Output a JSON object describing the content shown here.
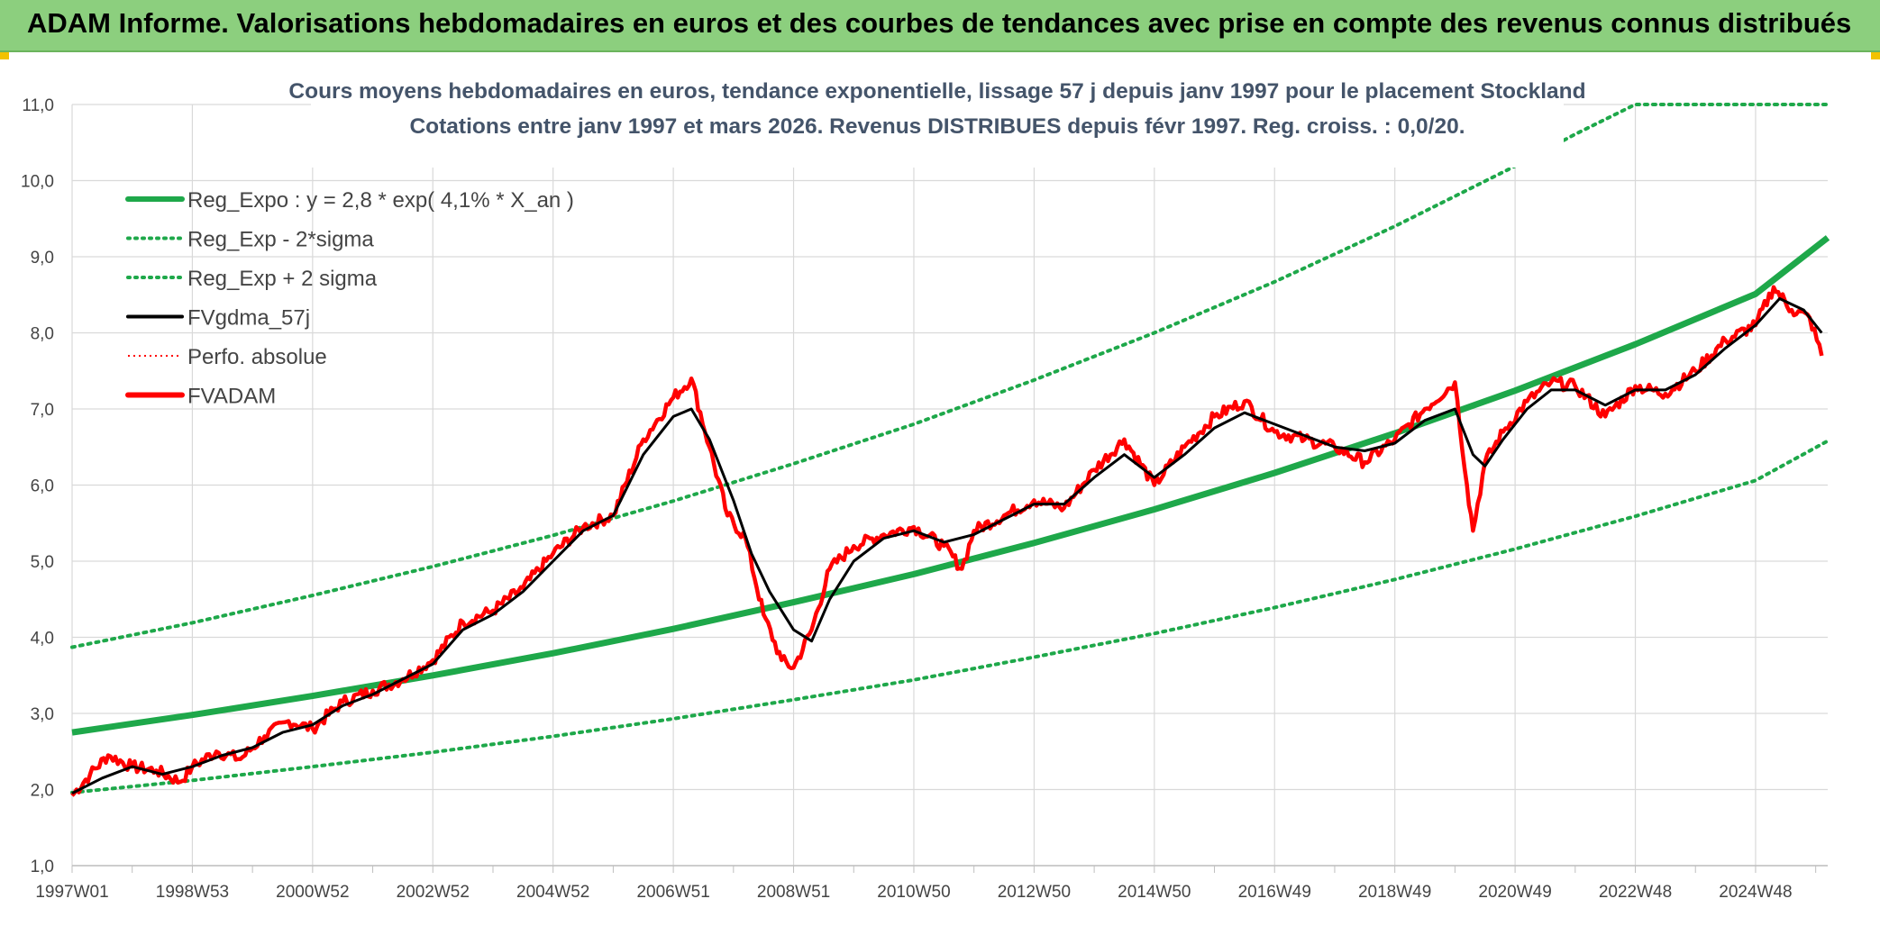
{
  "header": {
    "title": "ADAM Informe. Valorisations hebdomadaires en euros et des courbes de tendances avec prise en compte des revenus connus distribués"
  },
  "colors": {
    "banner": "#8ccf7e",
    "trend": "#1ea84a",
    "band": "#1ea84a",
    "smooth": "#000000",
    "price": "#ff0000",
    "perf": "#ff0000",
    "grid": "#d9d9d9"
  },
  "chart_data": {
    "type": "line",
    "title_lines": [
      "Cours moyens hebdomadaires en euros, tendance exponentielle, lissage 57 j depuis janv 1997 pour le placement Stockland",
      "Cotations entre janv 1997 et mars 2026. Revenus DISTRIBUES depuis févr 1997. Reg. croiss. : 0,0/20."
    ],
    "xlabel": "",
    "ylabel": "",
    "x_range": [
      1997.0,
      2026.2
    ],
    "ylim": [
      1.0,
      11.0
    ],
    "y_ticks": [
      "1,0",
      "2,0",
      "3,0",
      "4,0",
      "5,0",
      "6,0",
      "7,0",
      "8,0",
      "9,0",
      "10,0",
      "11,0"
    ],
    "x_ticks": [
      {
        "label": "1997W01",
        "x": 1997.0
      },
      {
        "label": "1998W53",
        "x": 1999.0
      },
      {
        "label": "2000W52",
        "x": 2001.0
      },
      {
        "label": "2002W52",
        "x": 2003.0
      },
      {
        "label": "2004W52",
        "x": 2005.0
      },
      {
        "label": "2006W51",
        "x": 2007.0
      },
      {
        "label": "2008W51",
        "x": 2009.0
      },
      {
        "label": "2010W50",
        "x": 2011.0
      },
      {
        "label": "2012W50",
        "x": 2013.0
      },
      {
        "label": "2014W50",
        "x": 2015.0
      },
      {
        "label": "2016W49",
        "x": 2017.0
      },
      {
        "label": "2018W49",
        "x": 2019.0
      },
      {
        "label": "2020W49",
        "x": 2021.0
      },
      {
        "label": "2022W48",
        "x": 2023.0
      },
      {
        "label": "2024W48",
        "x": 2025.0
      }
    ],
    "legend": [
      {
        "key": "reg_expo",
        "label": "Reg_Expo : y = 2,8 * exp( 4,1% *  X_an )",
        "style": "solid-thick",
        "color": "#1ea84a"
      },
      {
        "key": "reg_minus",
        "label": "Reg_Exp - 2*sigma",
        "style": "dotted",
        "color": "#1ea84a"
      },
      {
        "key": "reg_plus",
        "label": "Reg_Exp + 2 sigma",
        "style": "dotted",
        "color": "#1ea84a"
      },
      {
        "key": "fvgdma",
        "label": "FVgdma_57j",
        "style": "solid",
        "color": "#000000"
      },
      {
        "key": "perfo",
        "label": "Perfo. absolue",
        "style": "dotted-thin",
        "color": "#ff0000"
      },
      {
        "key": "fvadam",
        "label": "FVADAM",
        "style": "solid-thick",
        "color": "#ff0000"
      }
    ],
    "series": [
      {
        "name": "Reg_Expo",
        "x": [
          1997,
          1999,
          2001,
          2003,
          2005,
          2007,
          2009,
          2011,
          2013,
          2015,
          2017,
          2019,
          2021,
          2023,
          2025,
          2026.2
        ],
        "values": [
          2.75,
          2.98,
          3.23,
          3.5,
          3.79,
          4.11,
          4.46,
          4.83,
          5.24,
          5.68,
          6.16,
          6.68,
          7.24,
          7.85,
          8.51,
          9.25
        ]
      },
      {
        "name": "Reg_Exp + 2 sigma",
        "x": [
          1997,
          1999,
          2001,
          2003,
          2005,
          2007,
          2009,
          2011,
          2013,
          2015,
          2017,
          2019,
          2021,
          2022,
          2023,
          2024,
          2025,
          2026.2
        ],
        "values": [
          3.87,
          4.19,
          4.55,
          4.93,
          5.34,
          5.79,
          6.28,
          6.8,
          7.38,
          8.0,
          8.67,
          9.4,
          10.19,
          10.61,
          11.0,
          11.0,
          11.0,
          11.0
        ]
      },
      {
        "name": "Reg_Exp - 2*sigma",
        "x": [
          1997,
          1999,
          2001,
          2003,
          2005,
          2007,
          2009,
          2011,
          2013,
          2015,
          2017,
          2019,
          2021,
          2023,
          2025,
          2026.2
        ],
        "values": [
          1.96,
          2.12,
          2.3,
          2.49,
          2.7,
          2.93,
          3.18,
          3.44,
          3.74,
          4.05,
          4.39,
          4.76,
          5.16,
          5.59,
          6.06,
          6.58
        ]
      },
      {
        "name": "FVADAM",
        "x": [
          1997.0,
          1997.3,
          1997.6,
          1998.0,
          1998.4,
          1998.8,
          1999.0,
          1999.4,
          1999.8,
          2000.2,
          2000.6,
          2001.0,
          2001.5,
          2002.0,
          2002.5,
          2003.0,
          2003.5,
          2004.0,
          2004.5,
          2005.0,
          2005.5,
          2006.0,
          2006.5,
          2007.0,
          2007.3,
          2007.6,
          2007.9,
          2008.2,
          2008.5,
          2008.8,
          2009.0,
          2009.3,
          2009.6,
          2010.0,
          2010.5,
          2011.0,
          2011.5,
          2011.8,
          2012.0,
          2012.5,
          2013.0,
          2013.5,
          2014.0,
          2014.5,
          2015.0,
          2015.5,
          2016.0,
          2016.5,
          2017.0,
          2017.5,
          2018.0,
          2018.5,
          2019.0,
          2019.5,
          2020.0,
          2020.2,
          2020.3,
          2020.5,
          2020.8,
          2021.2,
          2021.6,
          2022.0,
          2022.5,
          2023.0,
          2023.5,
          2024.0,
          2024.5,
          2025.0,
          2025.3,
          2025.6,
          2025.9,
          2026.1
        ],
        "values": [
          1.92,
          2.2,
          2.45,
          2.3,
          2.25,
          2.1,
          2.3,
          2.5,
          2.4,
          2.7,
          2.9,
          2.8,
          3.15,
          3.3,
          3.45,
          3.7,
          4.2,
          4.35,
          4.65,
          5.1,
          5.45,
          5.6,
          6.6,
          7.15,
          7.4,
          6.5,
          5.6,
          5.3,
          4.3,
          3.7,
          3.6,
          4.1,
          4.9,
          5.2,
          5.35,
          5.45,
          5.2,
          4.9,
          5.4,
          5.6,
          5.8,
          5.7,
          6.2,
          6.6,
          6.0,
          6.5,
          6.9,
          7.1,
          6.7,
          6.6,
          6.5,
          6.3,
          6.6,
          7.0,
          7.35,
          6.0,
          5.4,
          6.3,
          6.7,
          7.1,
          7.35,
          7.3,
          6.9,
          7.3,
          7.2,
          7.5,
          7.9,
          8.1,
          8.6,
          8.3,
          8.2,
          7.7
        ]
      },
      {
        "name": "FVgdma_57j",
        "x": [
          1997.0,
          1997.5,
          1998.0,
          1998.5,
          1999.0,
          1999.5,
          2000.0,
          2000.5,
          2001.0,
          2001.5,
          2002.0,
          2002.5,
          2003.0,
          2003.5,
          2004.0,
          2004.5,
          2005.0,
          2005.5,
          2006.0,
          2006.5,
          2007.0,
          2007.3,
          2007.6,
          2008.0,
          2008.3,
          2008.6,
          2009.0,
          2009.3,
          2009.6,
          2010.0,
          2010.5,
          2011.0,
          2011.5,
          2012.0,
          2012.5,
          2013.0,
          2013.5,
          2014.0,
          2014.5,
          2015.0,
          2015.5,
          2016.0,
          2016.5,
          2017.0,
          2017.5,
          2018.0,
          2018.5,
          2019.0,
          2019.5,
          2020.0,
          2020.3,
          2020.5,
          2020.8,
          2021.2,
          2021.6,
          2022.0,
          2022.5,
          2023.0,
          2023.5,
          2024.0,
          2024.5,
          2025.0,
          2025.4,
          2025.8,
          2026.1
        ],
        "values": [
          1.95,
          2.15,
          2.3,
          2.2,
          2.3,
          2.45,
          2.55,
          2.75,
          2.85,
          3.1,
          3.25,
          3.45,
          3.65,
          4.1,
          4.3,
          4.6,
          5.0,
          5.4,
          5.6,
          6.4,
          6.9,
          7.0,
          6.6,
          5.8,
          5.1,
          4.6,
          4.1,
          3.95,
          4.5,
          5.0,
          5.3,
          5.4,
          5.25,
          5.35,
          5.55,
          5.75,
          5.75,
          6.1,
          6.4,
          6.1,
          6.4,
          6.75,
          6.95,
          6.8,
          6.65,
          6.5,
          6.45,
          6.55,
          6.85,
          7.0,
          6.4,
          6.25,
          6.6,
          7.0,
          7.25,
          7.25,
          7.05,
          7.25,
          7.25,
          7.45,
          7.8,
          8.1,
          8.45,
          8.3,
          8.0
        ]
      }
    ]
  }
}
